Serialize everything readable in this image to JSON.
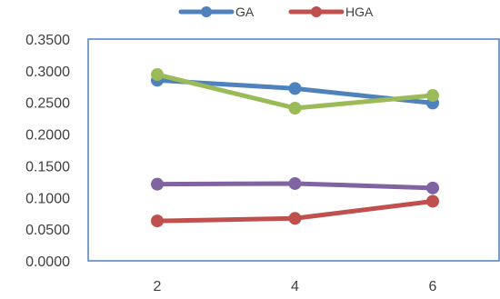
{
  "chart_data": {
    "type": "line",
    "x": [
      2,
      4,
      6
    ],
    "ylim": [
      0,
      0.35
    ],
    "yticks": [
      "0.0000",
      "0.0500",
      "0.1000",
      "0.1500",
      "0.2000",
      "0.2500",
      "0.3000",
      "0.3500"
    ],
    "grid": false,
    "legend_position": "top-center",
    "series": [
      {
        "name": "GA",
        "color": "#4F81BD",
        "values": [
          0.285,
          0.272,
          0.249
        ]
      },
      {
        "name": "HGA",
        "color": "#C0504D",
        "values": [
          0.063,
          0.067,
          0.094
        ]
      },
      {
        "name": "",
        "color": "#9BBB59",
        "values": [
          0.294,
          0.241,
          0.261
        ]
      },
      {
        "name": "",
        "color": "#8064A2",
        "values": [
          0.121,
          0.122,
          0.115
        ]
      }
    ]
  }
}
